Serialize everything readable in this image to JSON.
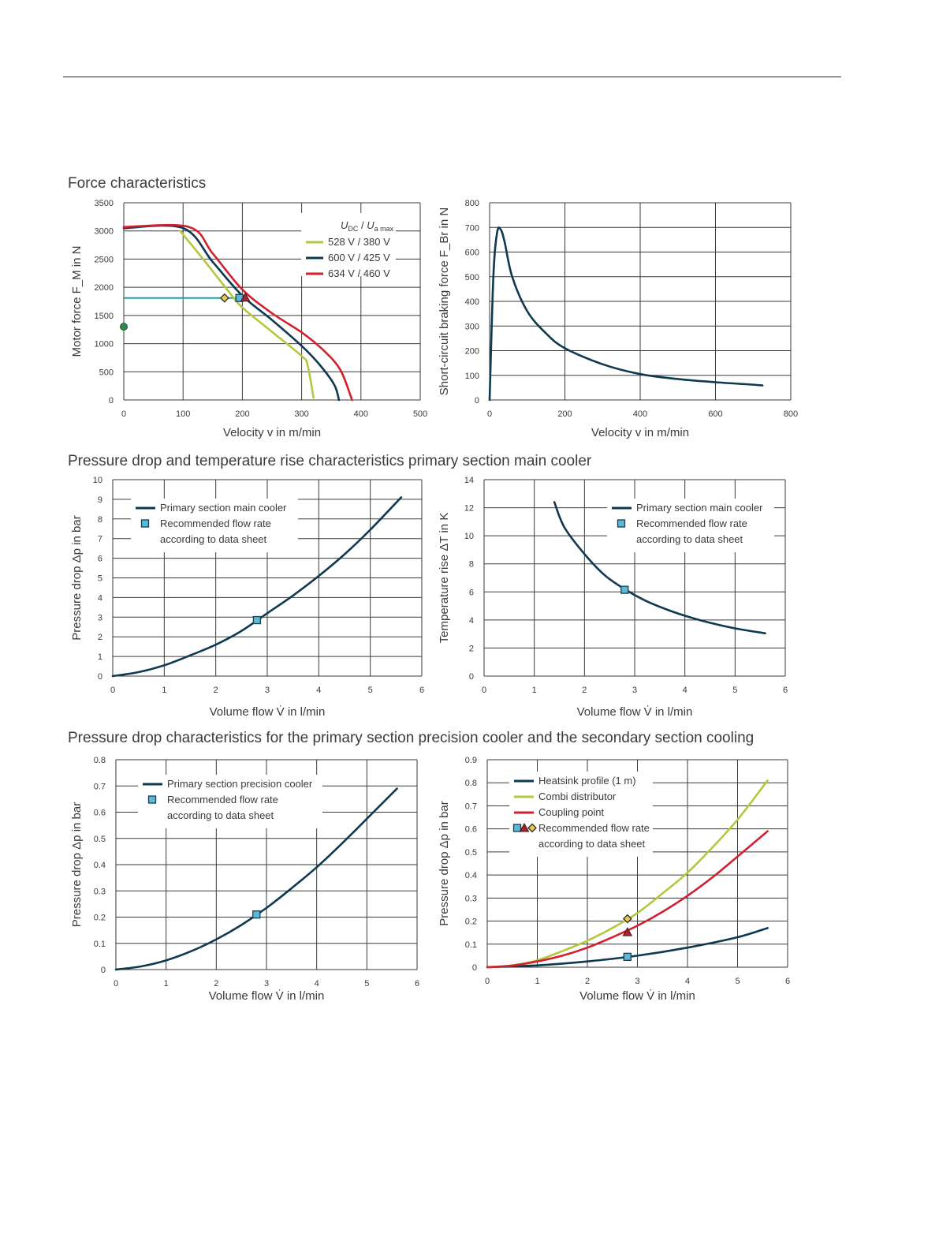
{
  "titles": {
    "force": "Force characteristics",
    "main_cooler": "Pressure drop and temperature rise characteristics primary section main cooler",
    "precision": "Pressure drop characteristics for the primary section precision cooler and the secondary section cooling"
  },
  "colors": {
    "navy": "#0d3a4e",
    "green": "#b4c83c",
    "red": "#d2202f",
    "teal": "#1aa0a5",
    "marker": "#5bb8d6",
    "grid": "#3a3a3a"
  },
  "chart_data": [
    {
      "id": "motor_force",
      "type": "line",
      "xlabel": "Velocity v in m/min",
      "ylabel": "Motor force F_M in N",
      "xlim": [
        0,
        500
      ],
      "ylim": [
        0,
        3500
      ],
      "xticks": [
        0,
        100,
        200,
        300,
        400,
        500
      ],
      "yticks": [
        0,
        500,
        1000,
        1500,
        2000,
        2500,
        3000,
        3500
      ],
      "legend_title": "U_DC / U_a max",
      "legend_position": "top-right",
      "grid": true,
      "series": [
        {
          "name": "528 V / 380 V",
          "color": "green",
          "points": [
            [
              95,
              3000
            ],
            [
              130,
              2550
            ],
            [
              175,
              1950
            ],
            [
              200,
              1640
            ],
            [
              250,
              1210
            ],
            [
              300,
              780
            ],
            [
              310,
              620
            ],
            [
              320,
              40
            ]
          ]
        },
        {
          "name": "600 V / 425 V",
          "color": "navy",
          "points": [
            [
              0,
              3050
            ],
            [
              100,
              3050
            ],
            [
              150,
              2450
            ],
            [
              200,
              1850
            ],
            [
              250,
              1420
            ],
            [
              300,
              960
            ],
            [
              330,
              630
            ],
            [
              355,
              270
            ],
            [
              363,
              0
            ]
          ]
        },
        {
          "name": "634 V / 460 V",
          "color": "red",
          "points": [
            [
              0,
              3070
            ],
            [
              110,
              3070
            ],
            [
              150,
              2600
            ],
            [
              200,
              1960
            ],
            [
              250,
              1540
            ],
            [
              300,
              1200
            ],
            [
              335,
              900
            ],
            [
              365,
              540
            ],
            [
              385,
              0
            ]
          ]
        }
      ],
      "reference_line": {
        "color": "teal",
        "from": [
          0,
          1810
        ],
        "to": [
          195,
          1810
        ]
      },
      "markers": [
        {
          "shape": "diamond",
          "x": 170,
          "y": 1810,
          "color": "green"
        },
        {
          "shape": "square",
          "x": 195,
          "y": 1810,
          "color": "marker"
        },
        {
          "shape": "triangle",
          "x": 205,
          "y": 1810,
          "color": "red"
        },
        {
          "shape": "circle",
          "x": 0,
          "y": 1300,
          "color": "green-dot"
        }
      ]
    },
    {
      "id": "braking_force",
      "type": "line",
      "xlabel": "Velocity v in m/min",
      "ylabel": "Short-circuit braking force F_Br in N",
      "xlim": [
        0,
        800
      ],
      "ylim": [
        0,
        800
      ],
      "xticks": [
        0,
        200,
        400,
        600,
        800
      ],
      "yticks": [
        0,
        100,
        200,
        300,
        400,
        500,
        600,
        700,
        800
      ],
      "grid": true,
      "series": [
        {
          "name": "",
          "color": "navy",
          "points": [
            [
              0,
              0
            ],
            [
              10,
              500
            ],
            [
              20,
              680
            ],
            [
              30,
              690
            ],
            [
              40,
              640
            ],
            [
              60,
              500
            ],
            [
              100,
              360
            ],
            [
              150,
              270
            ],
            [
              200,
              210
            ],
            [
              300,
              145
            ],
            [
              400,
              105
            ],
            [
              500,
              85
            ],
            [
              600,
              72
            ],
            [
              700,
              62
            ],
            [
              725,
              59
            ]
          ]
        }
      ]
    },
    {
      "id": "main_cooler_pressure",
      "type": "line",
      "xlabel": "Volume flow V̇ in l/min",
      "ylabel": "Pressure drop Δp in bar",
      "xlim": [
        0,
        6
      ],
      "ylim": [
        0,
        10
      ],
      "xticks": [
        0,
        1,
        2,
        3,
        4,
        5,
        6
      ],
      "yticks": [
        0,
        1,
        2,
        3,
        4,
        5,
        6,
        7,
        8,
        9,
        10
      ],
      "legend_position": "top-left",
      "grid": true,
      "legend": [
        "Primary section main cooler",
        "Recommended flow rate",
        "according to data sheet"
      ],
      "series": [
        {
          "name": "Primary section main cooler",
          "color": "navy",
          "points": [
            [
              0,
              0
            ],
            [
              0.5,
              0.2
            ],
            [
              1,
              0.55
            ],
            [
              1.5,
              1.05
            ],
            [
              2,
              1.6
            ],
            [
              2.5,
              2.3
            ],
            [
              3,
              3.2
            ],
            [
              3.5,
              4.1
            ],
            [
              4,
              5.1
            ],
            [
              4.5,
              6.2
            ],
            [
              5,
              7.45
            ],
            [
              5.6,
              9.1
            ]
          ]
        }
      ],
      "markers": [
        {
          "shape": "square",
          "x": 2.8,
          "y": 2.85,
          "color": "marker"
        }
      ]
    },
    {
      "id": "main_cooler_temp",
      "type": "line",
      "xlabel": "Volume flow V̇ in l/min",
      "ylabel": "Temperature rise ΔT in K",
      "xlim": [
        0,
        6
      ],
      "ylim": [
        0,
        14
      ],
      "xticks": [
        0,
        1,
        2,
        3,
        4,
        5,
        6
      ],
      "yticks": [
        0,
        2,
        4,
        6,
        8,
        10,
        12,
        14
      ],
      "legend_position": "top-right",
      "grid": true,
      "legend": [
        "Primary section main cooler",
        "Recommended flow rate",
        "according to data sheet"
      ],
      "series": [
        {
          "name": "Primary section main cooler",
          "color": "navy",
          "points": [
            [
              1.4,
              12.4
            ],
            [
              1.6,
              10.6
            ],
            [
              2,
              8.7
            ],
            [
              2.4,
              7.2
            ],
            [
              2.8,
              6.2
            ],
            [
              3.2,
              5.4
            ],
            [
              3.6,
              4.8
            ],
            [
              4,
              4.3
            ],
            [
              4.5,
              3.8
            ],
            [
              5,
              3.4
            ],
            [
              5.6,
              3.05
            ]
          ]
        }
      ],
      "markers": [
        {
          "shape": "square",
          "x": 2.8,
          "y": 6.15,
          "color": "marker"
        }
      ]
    },
    {
      "id": "precision_cooler",
      "type": "line",
      "xlabel": "Volume flow V̇ in l/min",
      "ylabel": "Pressure drop Δp in bar",
      "xlim": [
        0,
        6
      ],
      "ylim": [
        0,
        0.8
      ],
      "xticks": [
        0,
        1,
        2,
        3,
        4,
        5,
        6
      ],
      "yticks": [
        0,
        0.1,
        0.2,
        0.3,
        0.4,
        0.5,
        0.6,
        0.7,
        0.8
      ],
      "legend_position": "top-left",
      "grid": true,
      "legend": [
        "Primary section precision cooler",
        "Recommended flow rate",
        "according to data sheet"
      ],
      "series": [
        {
          "name": "Primary section precision cooler",
          "color": "navy",
          "points": [
            [
              0,
              0
            ],
            [
              0.5,
              0.012
            ],
            [
              1,
              0.035
            ],
            [
              1.5,
              0.07
            ],
            [
              2,
              0.115
            ],
            [
              2.5,
              0.17
            ],
            [
              3,
              0.235
            ],
            [
              3.5,
              0.31
            ],
            [
              4,
              0.39
            ],
            [
              4.5,
              0.48
            ],
            [
              5,
              0.575
            ],
            [
              5.6,
              0.69
            ]
          ]
        }
      ],
      "markers": [
        {
          "shape": "square",
          "x": 2.8,
          "y": 0.21,
          "color": "marker"
        }
      ]
    },
    {
      "id": "secondary_cooling",
      "type": "line",
      "xlabel": "Volume flow V̇ in l/min",
      "ylabel": "Pressure drop Δp in bar",
      "xlim": [
        0,
        6
      ],
      "ylim": [
        0,
        0.9
      ],
      "xticks": [
        0,
        1,
        2,
        3,
        4,
        5,
        6
      ],
      "yticks": [
        0,
        0.1,
        0.2,
        0.3,
        0.4,
        0.5,
        0.6,
        0.7,
        0.8,
        0.9
      ],
      "legend_position": "top-left",
      "grid": true,
      "legend": [
        "Heatsink profile (1 m)",
        "Combi distributor",
        "Coupling point",
        "Recommended flow rate",
        "according to data sheet"
      ],
      "series": [
        {
          "name": "Heatsink profile (1 m)",
          "color": "navy",
          "points": [
            [
              0,
              0
            ],
            [
              1,
              0.008
            ],
            [
              2,
              0.025
            ],
            [
              3,
              0.05
            ],
            [
              4,
              0.085
            ],
            [
              5,
              0.13
            ],
            [
              5.6,
              0.17
            ]
          ]
        },
        {
          "name": "Combi distributor",
          "color": "green",
          "points": [
            [
              0,
              0
            ],
            [
              0.5,
              0.008
            ],
            [
              1,
              0.03
            ],
            [
              1.5,
              0.07
            ],
            [
              2,
              0.115
            ],
            [
              2.5,
              0.17
            ],
            [
              3,
              0.235
            ],
            [
              3.5,
              0.32
            ],
            [
              4,
              0.41
            ],
            [
              4.5,
              0.52
            ],
            [
              5,
              0.64
            ],
            [
              5.6,
              0.81
            ]
          ]
        },
        {
          "name": "Coupling point",
          "color": "red",
          "points": [
            [
              0,
              0
            ],
            [
              0.5,
              0.007
            ],
            [
              1,
              0.025
            ],
            [
              1.5,
              0.05
            ],
            [
              2,
              0.085
            ],
            [
              2.5,
              0.13
            ],
            [
              3,
              0.18
            ],
            [
              3.5,
              0.24
            ],
            [
              4,
              0.31
            ],
            [
              4.5,
              0.39
            ],
            [
              5,
              0.48
            ],
            [
              5.6,
              0.59
            ]
          ]
        }
      ],
      "markers": [
        {
          "shape": "diamond",
          "x": 2.8,
          "y": 0.21,
          "color": "green"
        },
        {
          "shape": "triangle",
          "x": 2.8,
          "y": 0.15,
          "color": "red"
        },
        {
          "shape": "square",
          "x": 2.8,
          "y": 0.045,
          "color": "marker"
        }
      ]
    }
  ]
}
